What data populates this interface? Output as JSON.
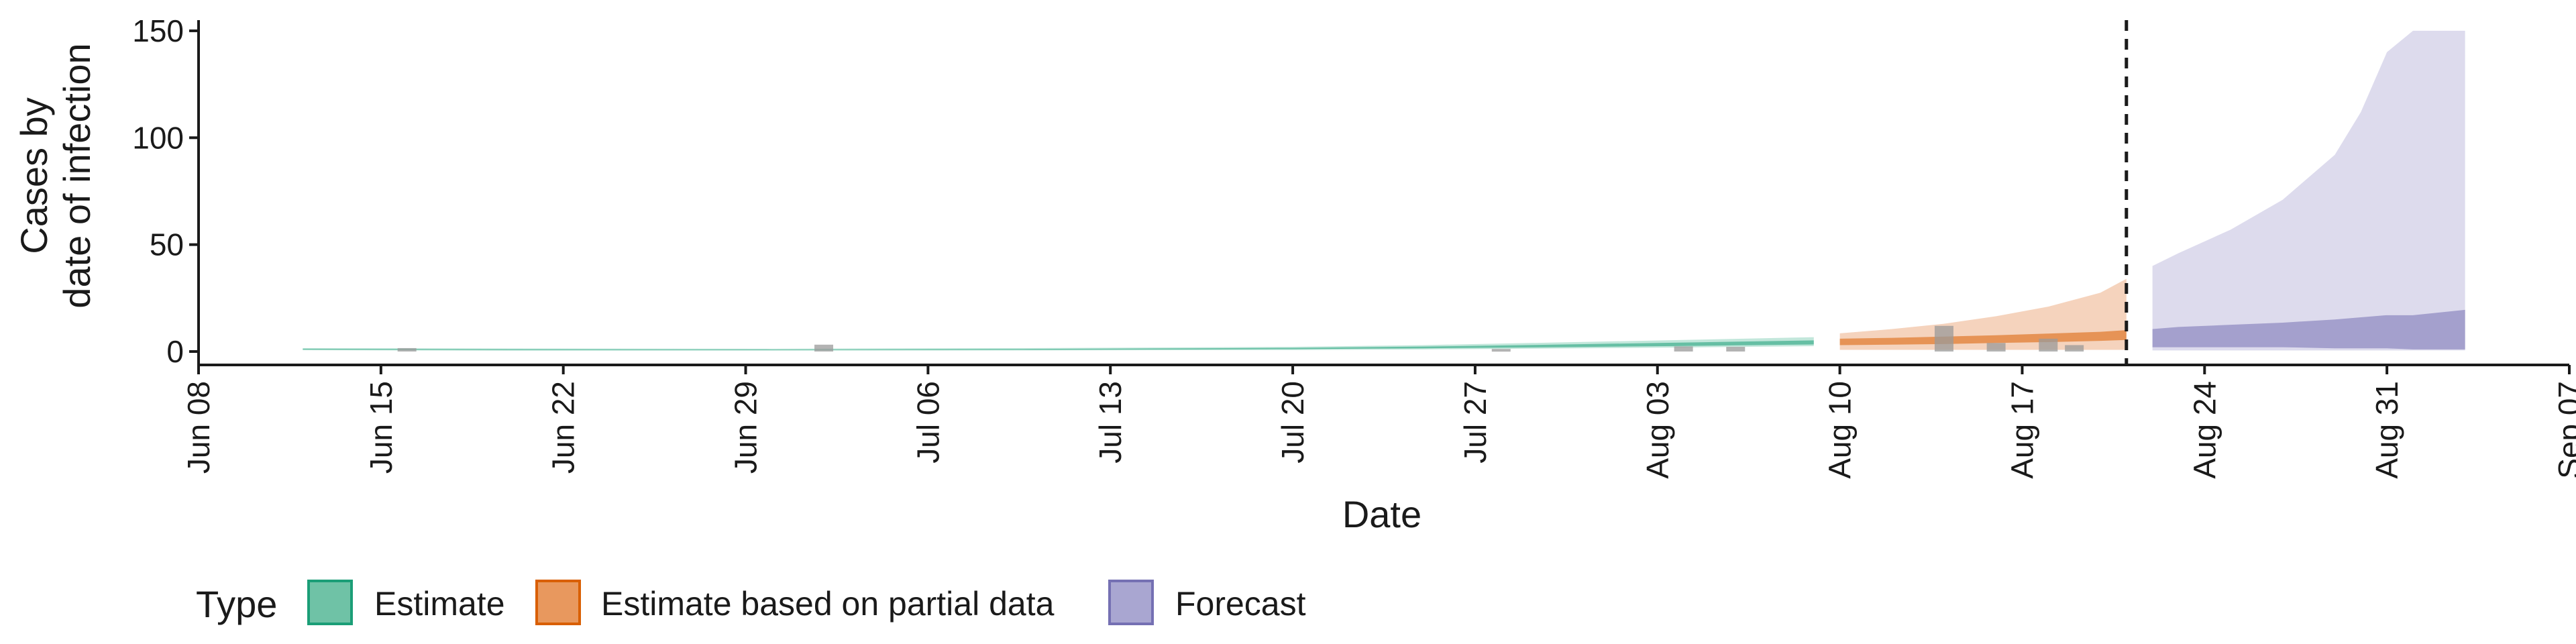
{
  "chart_data": {
    "type": "area",
    "title": "",
    "xlabel": "Date",
    "ylabel_lines": [
      "Cases by",
      "date of infection"
    ],
    "ylim": [
      0,
      155
    ],
    "xlim": [
      -2,
      89
    ],
    "x_origin_date": "Jun 10",
    "y_ticks": [
      0,
      50,
      100,
      150
    ],
    "y_tick_labels": [
      "0",
      "50",
      "100",
      "150"
    ],
    "x_ticks": [
      {
        "day": -2,
        "label": "Jun 08"
      },
      {
        "day": 5,
        "label": "Jun 15"
      },
      {
        "day": 12,
        "label": "Jun 22"
      },
      {
        "day": 19,
        "label": "Jun 29"
      },
      {
        "day": 26,
        "label": "Jul 06"
      },
      {
        "day": 33,
        "label": "Jul 13"
      },
      {
        "day": 40,
        "label": "Jul 20"
      },
      {
        "day": 47,
        "label": "Jul 27"
      },
      {
        "day": 54,
        "label": "Aug 03"
      },
      {
        "day": 61,
        "label": "Aug 10"
      },
      {
        "day": 68,
        "label": "Aug 17"
      },
      {
        "day": 75,
        "label": "Aug 24"
      },
      {
        "day": 82,
        "label": "Aug 31"
      },
      {
        "day": 89,
        "label": "Sep 07"
      }
    ],
    "forecast_date_day": 72,
    "legend": {
      "title": "Type",
      "position": "bottom-left",
      "entries": [
        "Estimate",
        "Estimate based on partial data",
        "Forecast"
      ]
    },
    "series": [
      {
        "name": "Estimate",
        "color": "#1b9e77",
        "fill": "#66c2a5",
        "x": [
          2,
          10,
          20,
          30,
          40,
          45,
          50,
          55,
          60
        ],
        "lower90": [
          0.6,
          0.4,
          0.4,
          0.5,
          0.7,
          1.0,
          1.4,
          1.9,
          2.5
        ],
        "upper90": [
          1.6,
          1.4,
          1.3,
          1.6,
          2.2,
          3.0,
          4.2,
          5.4,
          6.7
        ],
        "lower50": [
          0.9,
          0.7,
          0.7,
          0.8,
          1.1,
          1.5,
          2.0,
          2.6,
          3.3
        ],
        "upper50": [
          1.3,
          1.1,
          1.0,
          1.2,
          1.7,
          2.3,
          3.2,
          4.2,
          5.2
        ]
      },
      {
        "name": "Estimate based on partial data",
        "color": "#d95f02",
        "fill": "#e6915a",
        "x": [
          61,
          63,
          65,
          67,
          69,
          71,
          72
        ],
        "lower90": [
          0.8,
          0.8,
          0.8,
          0.8,
          0.8,
          0.8,
          0.8
        ],
        "upper90": [
          8.5,
          10.5,
          13.0,
          16.5,
          21.0,
          27.5,
          34.0
        ],
        "lower50": [
          3.0,
          3.2,
          3.5,
          4.0,
          4.4,
          5.0,
          5.4
        ],
        "upper50": [
          6.0,
          6.4,
          7.0,
          7.6,
          8.4,
          9.2,
          10.0
        ]
      },
      {
        "name": "Forecast",
        "color": "#7570b3",
        "fill": "#a9a6d1",
        "x": [
          73,
          74,
          76,
          78,
          80,
          81,
          82,
          83,
          85
        ],
        "lower90": [
          0.5,
          0.5,
          0.5,
          0.5,
          0.5,
          0.5,
          0.5,
          0.5,
          0.5
        ],
        "upper90": [
          40,
          46,
          57,
          71,
          92,
          112,
          140,
          150,
          150
        ],
        "lower50": [
          2.0,
          2.0,
          2.0,
          2.0,
          1.5,
          1.5,
          1.5,
          1.0,
          1.0
        ],
        "upper50": [
          10.5,
          11.5,
          12.5,
          13.5,
          15.0,
          16.0,
          17.0,
          17.0,
          19.5
        ]
      }
    ],
    "reported_cases": {
      "color": "#9a9a9a",
      "x": [
        6,
        22,
        48,
        55,
        57,
        65,
        67,
        69,
        70
      ],
      "values": [
        1.6,
        3.2,
        1.2,
        2.4,
        2.2,
        12.0,
        4.0,
        6.0,
        3.0
      ]
    }
  }
}
